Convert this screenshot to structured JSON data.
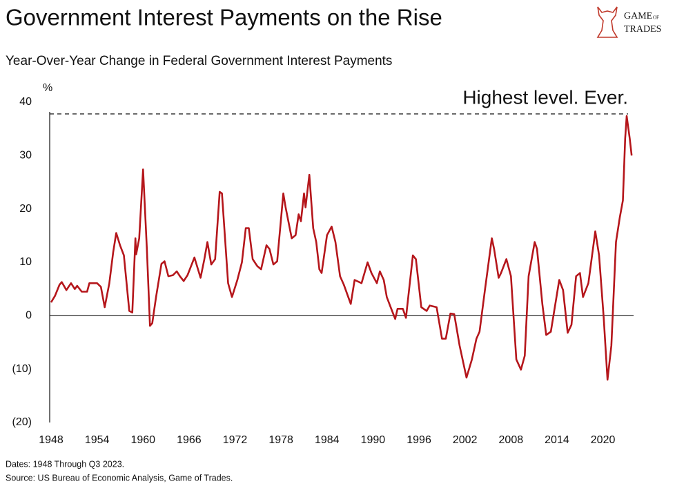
{
  "chart_data": {
    "type": "line",
    "title": "Government Interest Payments on the Rise",
    "subtitle": "Year-Over-Year Change in Federal Government Interest Payments",
    "y_unit": "%",
    "logo": [
      "GAME",
      "OF",
      "TRADES"
    ],
    "notes": [
      "Dates: 1948 Through Q3 2023.",
      "Source: US Bureau of Economic Analysis, Game of Trades."
    ],
    "annotation": {
      "text": "Highest level. Ever.",
      "value": 37.8
    },
    "color": "#b5161b",
    "xlim": [
      1948,
      2024
    ],
    "xticks": [
      1948,
      1954,
      1960,
      1966,
      1972,
      1978,
      1984,
      1990,
      1996,
      2002,
      2008,
      2014,
      2020
    ],
    "ylim": [
      -20,
      40
    ],
    "yticks": [
      {
        "value": -20,
        "label": "(20)"
      },
      {
        "value": -10,
        "label": "(10)"
      },
      0,
      10,
      20,
      30,
      40
    ],
    "x": [
      1948,
      1948.5,
      1949.1,
      1949.4,
      1950,
      1950.6,
      1951.1,
      1951.4,
      1952,
      1952.7,
      1953,
      1954,
      1954.5,
      1955,
      1955.6,
      1956.1,
      1956.5,
      1957,
      1957.5,
      1958.2,
      1958.6,
      1959,
      1959.1,
      1959.5,
      1960,
      1960.5,
      1960.9,
      1961.2,
      1961.7,
      1962.4,
      1962.8,
      1963.3,
      1963.9,
      1964.4,
      1964.8,
      1965.3,
      1965.8,
      1966.7,
      1967.5,
      1968,
      1968.4,
      1968.9,
      1969.4,
      1970,
      1970.3,
      1971.1,
      1971.6,
      1972.3,
      1972.9,
      1973.4,
      1973.8,
      1974.3,
      1974.9,
      1975.4,
      1976.1,
      1976.5,
      1977,
      1977.5,
      1978.3,
      1978.6,
      1979.4,
      1979.9,
      1980.3,
      1980.6,
      1981,
      1981.2,
      1981.7,
      1982.2,
      1982.6,
      1983,
      1983.3,
      1984,
      1984.6,
      1985.1,
      1985.7,
      1986.2,
      1987.1,
      1987.6,
      1988.5,
      1989.3,
      1989.8,
      1990.5,
      1990.9,
      1991.4,
      1991.8,
      1992.3,
      1992.9,
      1993.2,
      1993.9,
      1994.3,
      1995.2,
      1995.6,
      1996.3,
      1997,
      1997.4,
      1998.3,
      1999,
      1999.5,
      2000.1,
      2000.6,
      2001.3,
      2002.2,
      2002.9,
      2003.5,
      2003.9,
      2004.6,
      2005.5,
      2005.8,
      2006.4,
      2006.7,
      2007.4,
      2008,
      2008.7,
      2009.3,
      2009.8,
      2010.3,
      2011.1,
      2011.4,
      2012.1,
      2012.6,
      2013.2,
      2014.3,
      2014.8,
      2015.4,
      2015.9,
      2016.5,
      2017,
      2017.4,
      2018.1,
      2019,
      2019.5,
      2020.1,
      2020.6,
      2021.1,
      2021.7,
      2022.2,
      2022.6,
      2022.9,
      2023.1,
      2023.5,
      2023.75
    ],
    "values": [
      2.5,
      3.7,
      5.8,
      6.3,
      4.8,
      6.1,
      5,
      5.6,
      4.5,
      4.5,
      6.1,
      6.1,
      5.4,
      1.6,
      6.1,
      11.9,
      15.5,
      13.2,
      11.3,
      0.9,
      0.6,
      14.5,
      11.5,
      14.5,
      27.4,
      12.5,
      -1.9,
      -1.4,
      3.5,
      9.7,
      10.2,
      7.4,
      7.6,
      8.3,
      7.4,
      6.5,
      7.6,
      10.9,
      7.1,
      10.6,
      13.8,
      9.6,
      10.6,
      23.2,
      22.9,
      6.1,
      3.5,
      6.7,
      10,
      16.4,
      16.4,
      10.6,
      9.3,
      8.7,
      13.2,
      12.5,
      9.6,
      10.2,
      22.9,
      20.3,
      14.5,
      15.1,
      19,
      17.7,
      22.9,
      20.3,
      26.4,
      16.4,
      13.8,
      8.7,
      8,
      15.1,
      16.7,
      13.8,
      7.4,
      5.8,
      2.2,
      6.7,
      6.1,
      10,
      8,
      6.1,
      8.3,
      6.7,
      3.5,
      1.6,
      -0.6,
      1.3,
      1.3,
      -0.4,
      11.3,
      10.6,
      1.6,
      0.9,
      1.9,
      1.6,
      -4.3,
      -4.3,
      0.4,
      0.3,
      -5.6,
      -11.6,
      -8.2,
      -4.3,
      -3,
      4.8,
      14.5,
      12.5,
      7.1,
      8,
      10.6,
      7.4,
      -8.2,
      -10.1,
      -7.5,
      7.4,
      13.8,
      12.5,
      2.2,
      -3.6,
      -3,
      6.7,
      4.8,
      -3.2,
      -1.7,
      7.4,
      8,
      3.5,
      6.1,
      15.8,
      11.3,
      -0.4,
      -12,
      -5.6,
      13.8,
      18.4,
      21.6,
      33.2,
      37.4,
      33.2,
      30
    ]
  }
}
